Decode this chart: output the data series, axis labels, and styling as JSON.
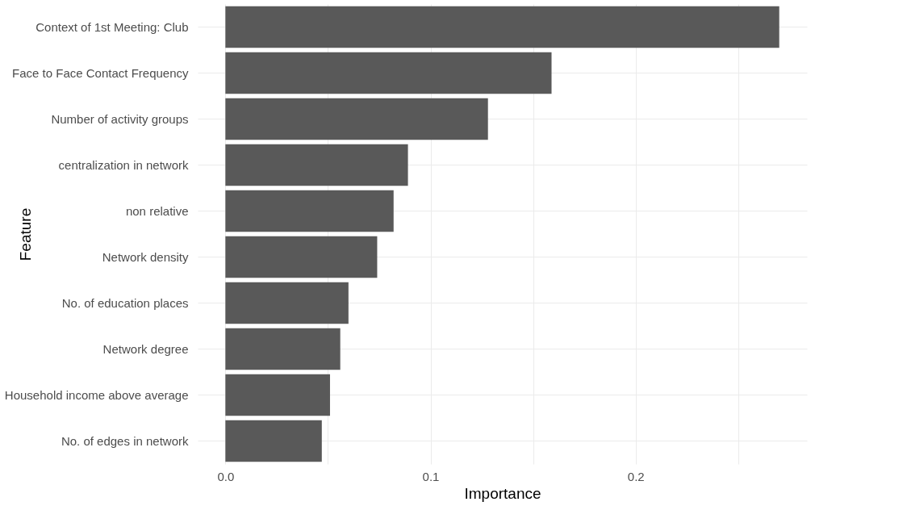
{
  "chart_data": {
    "type": "bar",
    "orientation": "horizontal",
    "xlabel": "Importance",
    "ylabel": "Feature",
    "categories": [
      "Context of 1st Meeting: Club",
      "Face to Face Contact Frequency",
      "Number of activity groups",
      "centralization in network",
      "non relative",
      "Network density",
      "No. of education places",
      "Network degree",
      "Household income above average",
      "No. of edges in network"
    ],
    "values": [
      0.27,
      0.159,
      0.128,
      0.089,
      0.082,
      0.074,
      0.06,
      0.056,
      0.051,
      0.047
    ],
    "color": "#595959",
    "xlim": [
      -0.0135,
      0.2835
    ],
    "xticks": [
      {
        "value": 0,
        "label": "0.0"
      },
      {
        "value": 0.05,
        "label": null
      },
      {
        "value": 0.1,
        "label": "0.1"
      },
      {
        "value": 0.15,
        "label": null
      },
      {
        "value": 0.2,
        "label": "0.2"
      },
      {
        "value": 0.25,
        "label": null
      }
    ],
    "grid": true
  }
}
